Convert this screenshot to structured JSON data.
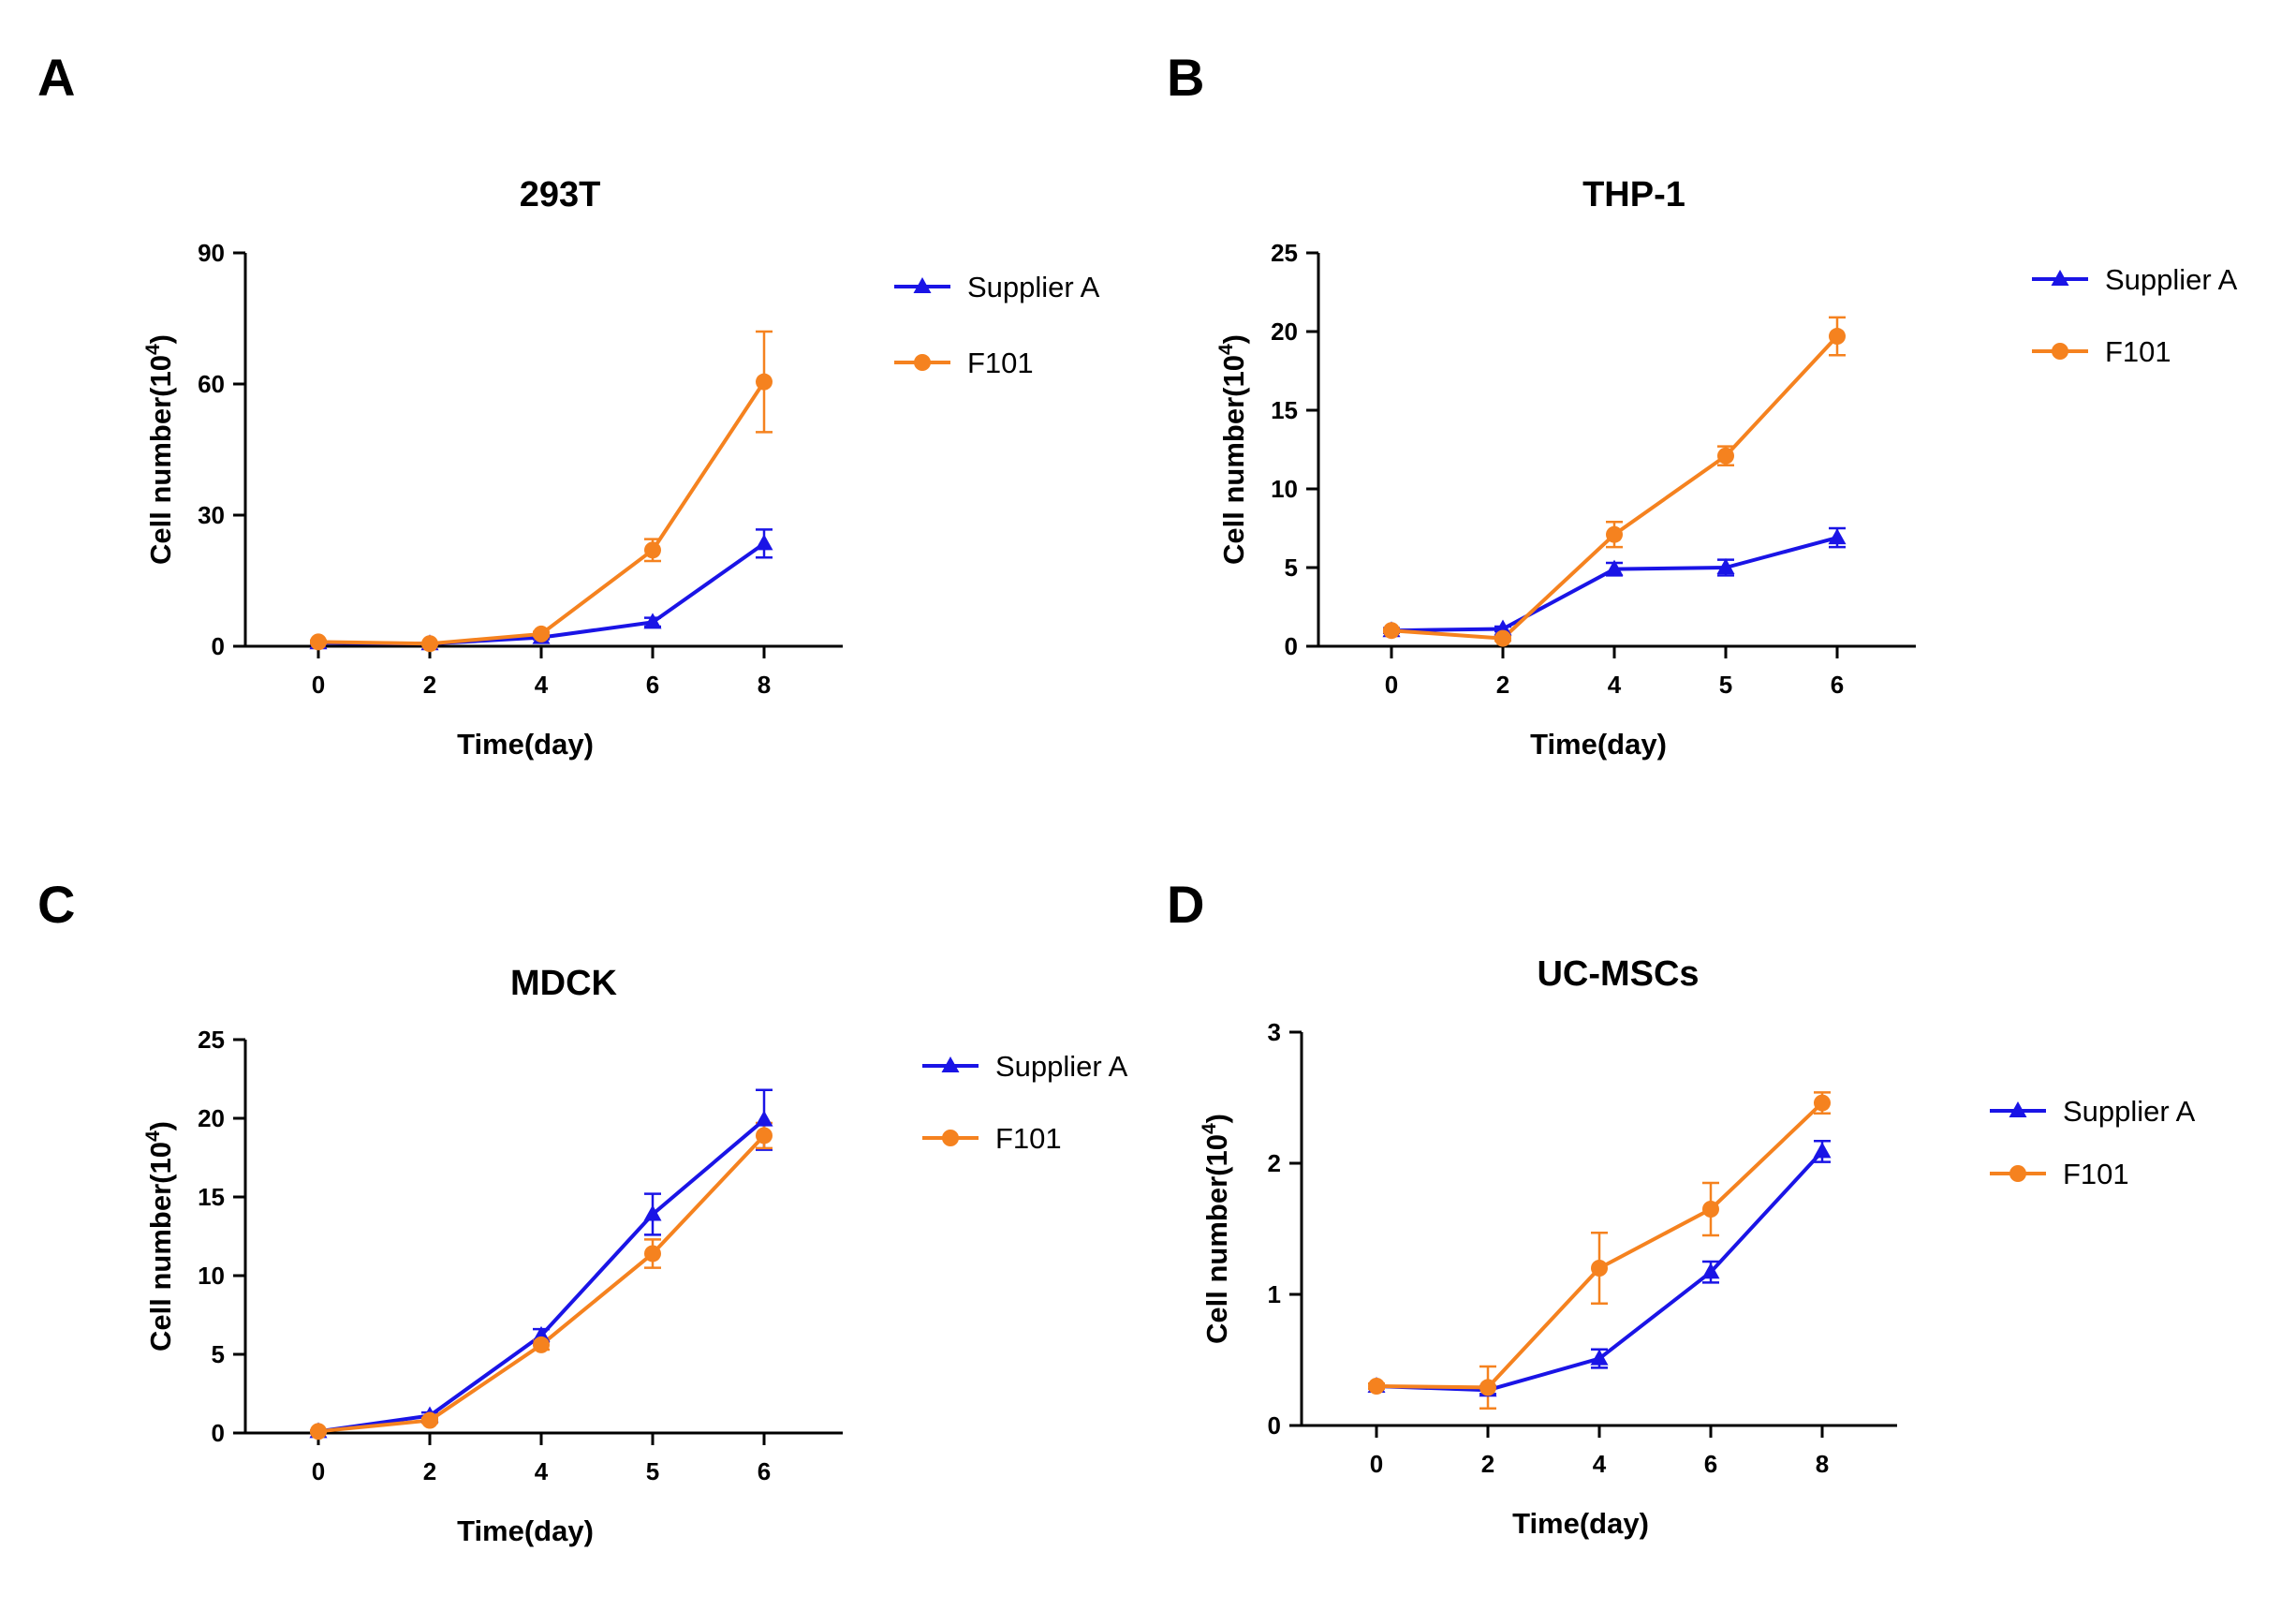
{
  "colors": {
    "supplier_a": "#1a14e6",
    "f101": "#f5821f",
    "axis": "#000000"
  },
  "chart_data": [
    {
      "panel": "A",
      "type": "line",
      "title": "293T",
      "xlabel": "Time(day)",
      "ylabel": "Cell number(10",
      "ylabel_sup": "4",
      "ylabel_end": ")",
      "categories": [
        "0",
        "2",
        "4",
        "6",
        "8"
      ],
      "ylim": [
        0,
        90
      ],
      "yticks": [
        0,
        30,
        60,
        90
      ],
      "legend_position": "top-right",
      "series": [
        {
          "name": "Supplier A",
          "marker": "triangle",
          "values": [
            0.8,
            0.6,
            2,
            5.5,
            23.5
          ],
          "err": [
            0.3,
            0.2,
            0.4,
            1,
            3.2
          ]
        },
        {
          "name": "F101",
          "marker": "circle",
          "values": [
            1,
            0.6,
            2.8,
            22,
            60.5
          ],
          "err": [
            0.3,
            0.2,
            0.5,
            2.5,
            11.5
          ]
        }
      ]
    },
    {
      "panel": "B",
      "type": "line",
      "title": "THP-1",
      "xlabel": "Time(day)",
      "ylabel": "Cell number(10",
      "ylabel_sup": "4",
      "ylabel_end": ")",
      "categories": [
        "0",
        "2",
        "4",
        "5",
        "6"
      ],
      "ylim": [
        0,
        25
      ],
      "yticks": [
        0,
        5,
        10,
        15,
        20,
        25
      ],
      "legend_position": "top-right",
      "series": [
        {
          "name": "Supplier A",
          "marker": "triangle",
          "values": [
            1,
            1.1,
            4.9,
            5,
            6.9
          ],
          "err": [
            0.15,
            0.15,
            0.4,
            0.5,
            0.6
          ]
        },
        {
          "name": "F101",
          "marker": "circle",
          "values": [
            1,
            0.5,
            7.1,
            12.1,
            19.7
          ],
          "err": [
            0.1,
            0.15,
            0.8,
            0.6,
            1.2
          ]
        }
      ]
    },
    {
      "panel": "C",
      "type": "line",
      "title": "MDCK",
      "xlabel": "Time(day)",
      "ylabel": "Cell number(10",
      "ylabel_sup": "4",
      "ylabel_end": ")",
      "categories": [
        "0",
        "2",
        "4",
        "5",
        "6"
      ],
      "ylim": [
        0,
        25
      ],
      "yticks": [
        0,
        5,
        10,
        15,
        20,
        25
      ],
      "legend_position": "top-right",
      "series": [
        {
          "name": "Supplier A",
          "marker": "triangle",
          "values": [
            0.1,
            1.1,
            6.2,
            13.9,
            19.9
          ],
          "err": [
            0.05,
            0.2,
            0.4,
            1.3,
            1.9
          ]
        },
        {
          "name": "F101",
          "marker": "circle",
          "values": [
            0.1,
            0.8,
            5.6,
            11.4,
            18.9
          ],
          "err": [
            0.05,
            0.15,
            0.3,
            0.9,
            0.8
          ]
        }
      ]
    },
    {
      "panel": "D",
      "type": "line",
      "title": "UC-MSCs",
      "xlabel": "Time(day)",
      "ylabel": "Cell number(10",
      "ylabel_sup": "4",
      "ylabel_end": ")",
      "categories": [
        "0",
        "2",
        "4",
        "6",
        "8"
      ],
      "ylim": [
        0,
        3
      ],
      "yticks": [
        0,
        1,
        2,
        3
      ],
      "legend_position": "top-right",
      "series": [
        {
          "name": "Supplier A",
          "marker": "triangle",
          "values": [
            0.3,
            0.27,
            0.51,
            1.17,
            2.09
          ],
          "err": [
            0.02,
            0.03,
            0.07,
            0.08,
            0.08
          ]
        },
        {
          "name": "F101",
          "marker": "circle",
          "values": [
            0.3,
            0.29,
            1.2,
            1.65,
            2.46
          ],
          "err": [
            0.02,
            0.16,
            0.27,
            0.2,
            0.08
          ]
        }
      ]
    }
  ]
}
